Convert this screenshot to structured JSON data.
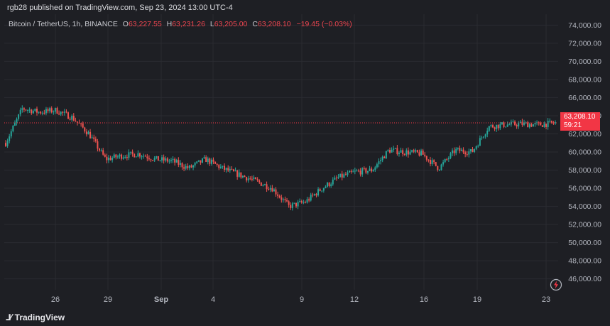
{
  "header": {
    "publisher": "rgb28 published on TradingView.com, Sep 23, 2024 13:00 UTC-4"
  },
  "legend": {
    "symbol": "Bitcoin / TetherUS, 1h, BINANCE",
    "open_label": "O",
    "open": "63,227.55",
    "high_label": "H",
    "high": "63,231.26",
    "low_label": "L",
    "low": "63,205.00",
    "close_label": "C",
    "close": "63,208.10",
    "change": "−19.45 (−0.03%)"
  },
  "price_tag": {
    "price": "63,208.10",
    "countdown": "59:21"
  },
  "footer": {
    "brand": "TradingView",
    "logo_icon": "tradingview-logo-icon"
  },
  "colors": {
    "background": "#1e1f24",
    "up": "#26a69a",
    "down": "#ef5350",
    "grid": "#2a2b31",
    "axis_text": "#b2b5be",
    "last_price": "#f23645"
  },
  "chart_data": {
    "type": "candlestick",
    "title": "Bitcoin / TetherUS, 1h, BINANCE",
    "interval": "1h",
    "y_ticks": [
      "46,000.00",
      "48,000.00",
      "50,000.00",
      "52,000.00",
      "54,000.00",
      "56,000.00",
      "58,000.00",
      "60,000.00",
      "62,000.00",
      "64,000.00",
      "66,000.00",
      "68,000.00",
      "70,000.00",
      "72,000.00",
      "74,000.00"
    ],
    "x_ticks": [
      "26",
      "29",
      "Sep",
      "4",
      "9",
      "12",
      "16",
      "19",
      "23"
    ],
    "ylim": [
      44800,
      75200
    ],
    "last_price": 63208.1,
    "series": [
      {
        "x": "Aug 23",
        "value": 61000
      },
      {
        "x": "Aug 23",
        "value": 64800
      },
      {
        "x": "Aug 24",
        "value": 64400
      },
      {
        "x": "Aug 25",
        "value": 64600
      },
      {
        "x": "Aug 26",
        "value": 63800
      },
      {
        "x": "Aug 27",
        "value": 62000
      },
      {
        "x": "Aug 27",
        "value": 59200
      },
      {
        "x": "Aug 28",
        "value": 59600
      },
      {
        "x": "Aug 29",
        "value": 59800
      },
      {
        "x": "Aug 30",
        "value": 59200
      },
      {
        "x": "Aug 31",
        "value": 59000
      },
      {
        "x": "Sep 1",
        "value": 58200
      },
      {
        "x": "Sep 2",
        "value": 59200
      },
      {
        "x": "Sep 3",
        "value": 58200
      },
      {
        "x": "Sep 4",
        "value": 57500
      },
      {
        "x": "Sep 5",
        "value": 56800
      },
      {
        "x": "Sep 6",
        "value": 56000
      },
      {
        "x": "Sep 7",
        "value": 54000
      },
      {
        "x": "Sep 8",
        "value": 54500
      },
      {
        "x": "Sep 9",
        "value": 56000
      },
      {
        "x": "Sep 10",
        "value": 57200
      },
      {
        "x": "Sep 11",
        "value": 57800
      },
      {
        "x": "Sep 12",
        "value": 58000
      },
      {
        "x": "Sep 13",
        "value": 60200
      },
      {
        "x": "Sep 14",
        "value": 60000
      },
      {
        "x": "Sep 15",
        "value": 59800
      },
      {
        "x": "Sep 16",
        "value": 58200
      },
      {
        "x": "Sep 17",
        "value": 60200
      },
      {
        "x": "Sep 18",
        "value": 60000
      },
      {
        "x": "Sep 19",
        "value": 62800
      },
      {
        "x": "Sep 20",
        "value": 63000
      },
      {
        "x": "Sep 21",
        "value": 63100
      },
      {
        "x": "Sep 22",
        "value": 63000
      },
      {
        "x": "Sep 23",
        "value": 63208.1
      }
    ]
  }
}
